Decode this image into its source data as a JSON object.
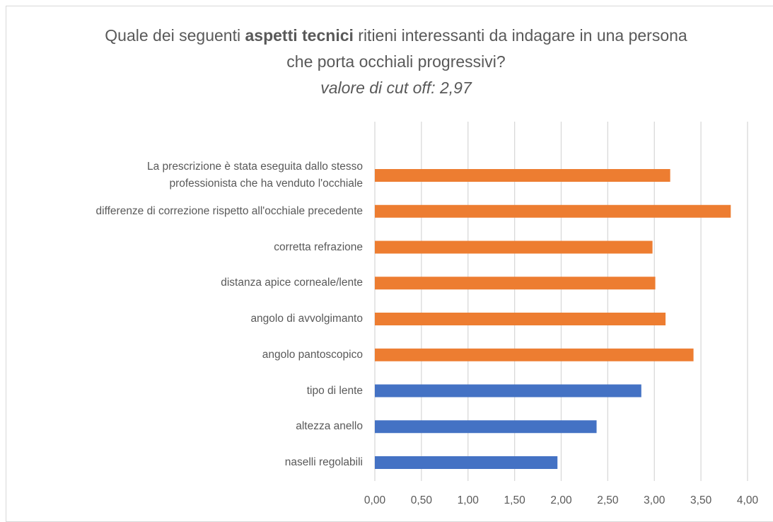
{
  "chart_data": {
    "type": "bar",
    "orientation": "horizontal",
    "title_parts": [
      "Quale dei seguenti ",
      "aspetti tecnici",
      " ritieni interessanti da indagare in una persona che porta occhiali progressivi?"
    ],
    "subtitle": "valore di cut off: 2,97",
    "categories": [
      "La prescrizione è stata eseguita dallo stesso\nprofessionista che ha venduto l'occhiale",
      "differenze di correzione rispetto all'occhiale precedente",
      "corretta refrazione",
      "distanza apice corneale/lente",
      "angolo di avvolgimanto",
      "angolo pantoscopico",
      "tipo di lente ",
      "altezza anello",
      "naselli regolabili"
    ],
    "values": [
      3.17,
      3.82,
      2.98,
      3.01,
      3.12,
      3.42,
      2.86,
      2.38,
      1.96
    ],
    "colors": [
      "#ED7D31",
      "#ED7D31",
      "#ED7D31",
      "#ED7D31",
      "#ED7D31",
      "#ED7D31",
      "#4472C4",
      "#4472C4",
      "#4472C4"
    ],
    "xlim": [
      0,
      4
    ],
    "xticks": [
      {
        "value": 0,
        "label": "0,00"
      },
      {
        "value": 0.5,
        "label": "0,50"
      },
      {
        "value": 1,
        "label": "1,00"
      },
      {
        "value": 1.5,
        "label": "1,50"
      },
      {
        "value": 2,
        "label": "2,00"
      },
      {
        "value": 2.5,
        "label": "2,50"
      },
      {
        "value": 3,
        "label": "3,00"
      },
      {
        "value": 3.5,
        "label": "3,50"
      },
      {
        "value": 4,
        "label": "4,00"
      }
    ],
    "grid": true
  }
}
